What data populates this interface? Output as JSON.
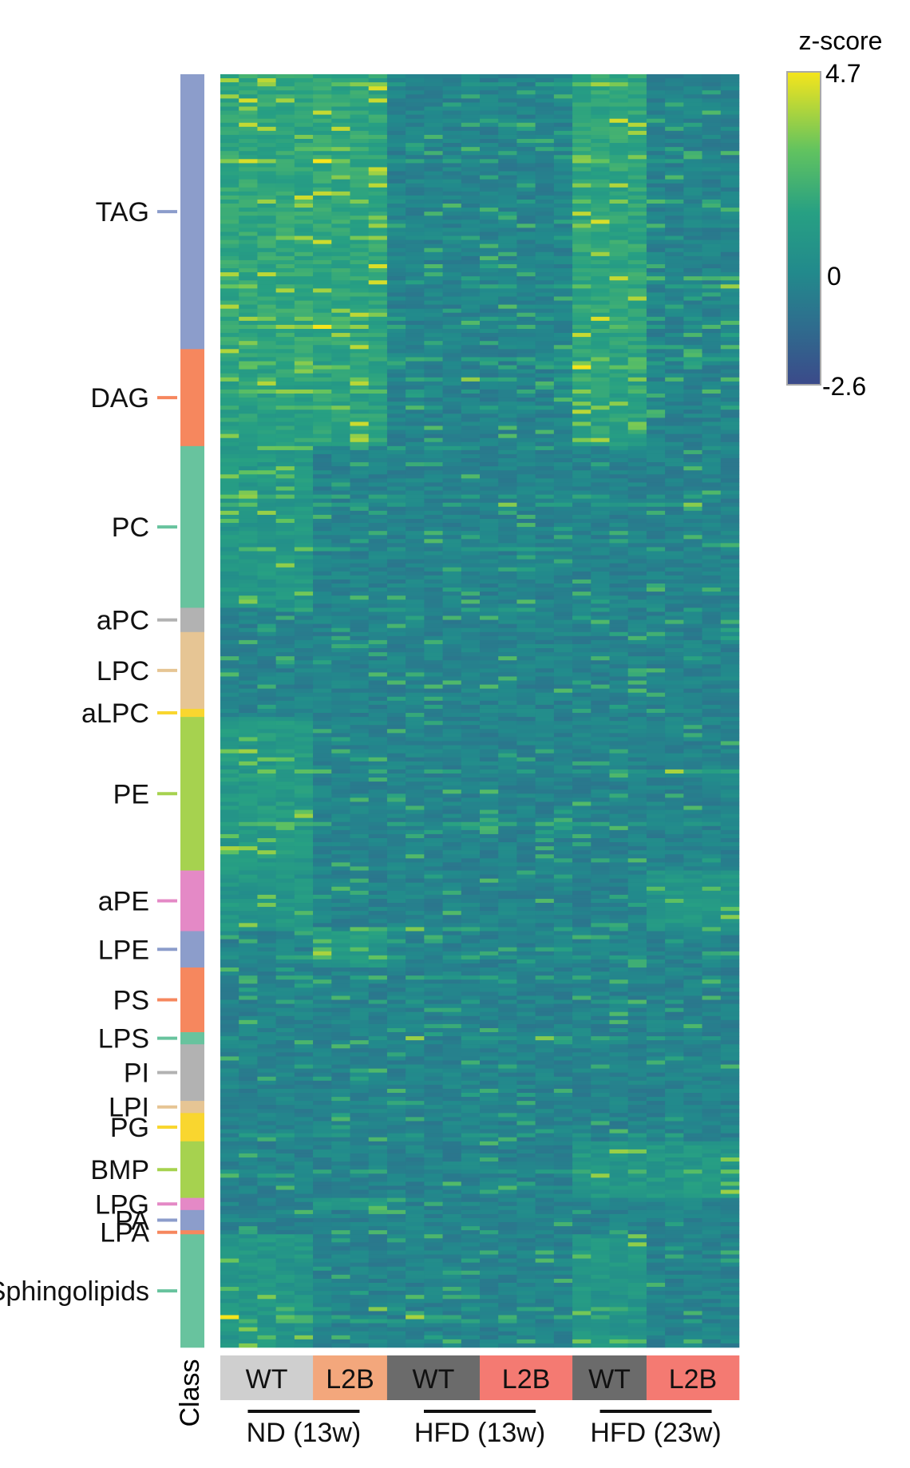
{
  "chart_data": {
    "type": "heatmap",
    "title": "",
    "colorbar": {
      "label": "z-score",
      "max": 4.7,
      "mid": 0,
      "min": -2.6,
      "max_label": "4.7",
      "mid_label": "0",
      "min_label": "-2.6",
      "colormap": "viridis"
    },
    "row_annotation": {
      "label": "Class",
      "classes": [
        {
          "name": "TAG",
          "rows": 68,
          "color": "#8c9dcb"
        },
        {
          "name": "DAG",
          "rows": 24,
          "color": "#f6875e"
        },
        {
          "name": "PC",
          "rows": 40,
          "color": "#68c39e"
        },
        {
          "name": "aPC",
          "rows": 6,
          "color": "#b2b2b2"
        },
        {
          "name": "LPC",
          "rows": 19,
          "color": "#e6c594"
        },
        {
          "name": "aLPC",
          "rows": 2,
          "color": "#f9d62f"
        },
        {
          "name": "PE",
          "rows": 38,
          "color": "#a6d24f"
        },
        {
          "name": "aPE",
          "rows": 15,
          "color": "#e489c6"
        },
        {
          "name": "LPE",
          "rows": 9,
          "color": "#8c9dcb"
        },
        {
          "name": "PS",
          "rows": 16,
          "color": "#f6875e"
        },
        {
          "name": "LPS",
          "rows": 3,
          "color": "#68c39e"
        },
        {
          "name": "PI",
          "rows": 14,
          "color": "#b2b2b2"
        },
        {
          "name": "LPI",
          "rows": 3,
          "color": "#e6c594"
        },
        {
          "name": "PG",
          "rows": 7,
          "color": "#f9d62f"
        },
        {
          "name": "BMP",
          "rows": 14,
          "color": "#a6d24f"
        },
        {
          "name": "LPG",
          "rows": 3,
          "color": "#e489c6"
        },
        {
          "name": "PA",
          "rows": 5,
          "color": "#8c9dcb"
        },
        {
          "name": "LPA",
          "rows": 1,
          "color": "#f6875e"
        },
        {
          "name": "Sphingolipids",
          "rows": 28,
          "color": "#68c39e"
        }
      ]
    },
    "column_groups": [
      {
        "label": "WT",
        "columns": 5,
        "color": "#cfcfcf",
        "condition": "ND (13w)"
      },
      {
        "label": "L2B",
        "columns": 4,
        "color": "#f3a77c",
        "condition": "ND (13w)"
      },
      {
        "label": "WT",
        "columns": 5,
        "color": "#6b6b6b",
        "condition": "HFD (13w)"
      },
      {
        "label": "L2B",
        "columns": 5,
        "color": "#f47a72",
        "condition": "HFD (13w)"
      },
      {
        "label": "WT",
        "columns": 4,
        "color": "#6b6b6b",
        "condition": "HFD (23w)"
      },
      {
        "label": "L2B",
        "columns": 5,
        "color": "#f47a72",
        "condition": "HFD (23w)"
      }
    ],
    "conditions": [
      "ND (13w)",
      "HFD (13w)",
      "HFD (23w)"
    ],
    "highlights": [
      {
        "class": "TAG",
        "groups": [
          0,
          1,
          4
        ],
        "level": 1.6
      },
      {
        "class": "DAG",
        "groups": [
          0,
          1,
          4
        ],
        "level": 1.4
      },
      {
        "class": "PC",
        "groups": [
          0
        ],
        "level": 0.9
      },
      {
        "class": "PE",
        "groups": [
          0
        ],
        "level": 1.0
      },
      {
        "class": "aPE",
        "groups": [
          0,
          5
        ],
        "level": 0.8
      },
      {
        "class": "LPE",
        "groups": [
          1
        ],
        "level": 1.0
      },
      {
        "class": "BMP",
        "groups": [
          4,
          5
        ],
        "level": 0.9
      },
      {
        "class": "LPG",
        "groups": [
          1
        ],
        "level": 1.1
      },
      {
        "class": "Sphingolipids",
        "groups": [
          0,
          4
        ],
        "level": 0.8
      }
    ]
  }
}
